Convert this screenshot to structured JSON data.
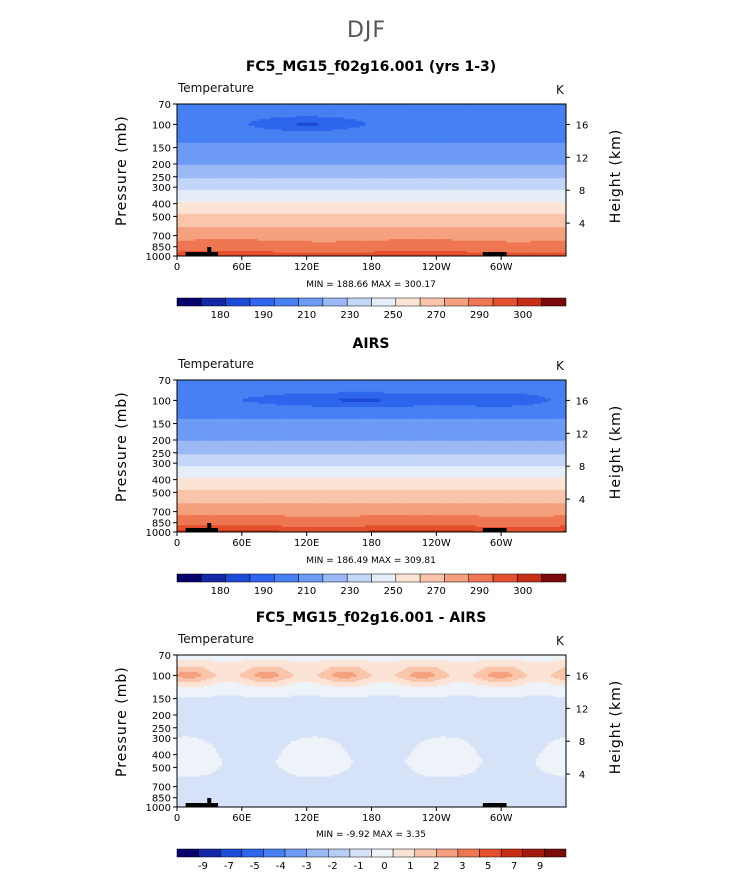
{
  "title": "DJF",
  "chart_data": [
    {
      "type": "heatmap",
      "title": "FC5_MG15_f02g16.001 (yrs 1-3)",
      "variable_label": "Temperature",
      "units": "K",
      "ylabel": "Pressure (mb)",
      "y2label": "Height (km)",
      "x_ticks": [
        "0",
        "60E",
        "120E",
        "180",
        "120W",
        "60W"
      ],
      "x_tick_lon": [
        0,
        60,
        120,
        180,
        240,
        300
      ],
      "xlim": [
        0,
        360
      ],
      "y_ticks": [
        70,
        100,
        150,
        200,
        250,
        300,
        400,
        500,
        700,
        850,
        1000
      ],
      "ylim": [
        70,
        1000
      ],
      "y2_ticks": [
        4,
        8,
        12,
        16
      ],
      "stats": "MIN = 188.66   MAX = 300.17",
      "colorbar": {
        "levels": [
          180,
          185,
          190,
          200,
          210,
          220,
          230,
          240,
          250,
          260,
          270,
          280,
          290,
          295,
          300
        ],
        "labels": [
          "180",
          "190",
          "210",
          "230",
          "250",
          "270",
          "290",
          "300"
        ],
        "colors": [
          "#08006b",
          "#1428a8",
          "#1e4bd6",
          "#2d66ed",
          "#4680f2",
          "#6d9bf5",
          "#9ab9f5",
          "#c3d6f7",
          "#e5eef8",
          "#fbe4d6",
          "#f9c5ab",
          "#f5a07e",
          "#ee7752",
          "#e4502d",
          "#c72e15",
          "#7a0b0b"
        ]
      },
      "profile": [
        {
          "p": 70,
          "t": 205
        },
        {
          "p": 100,
          "t": 203
        },
        {
          "p": 150,
          "t": 212
        },
        {
          "p": 200,
          "t": 220
        },
        {
          "p": 250,
          "t": 228
        },
        {
          "p": 300,
          "t": 237
        },
        {
          "p": 400,
          "t": 252
        },
        {
          "p": 500,
          "t": 262
        },
        {
          "p": 700,
          "t": 276
        },
        {
          "p": 850,
          "t": 285
        },
        {
          "p": 1000,
          "t": 294
        }
      ],
      "anomaly_cold": [
        {
          "lon": 120,
          "p": 100,
          "dlon": 45,
          "amp": -14
        }
      ]
    },
    {
      "type": "heatmap",
      "title": "AIRS",
      "variable_label": "Temperature",
      "units": "K",
      "ylabel": "Pressure (mb)",
      "y2label": "Height (km)",
      "x_ticks": [
        "0",
        "60E",
        "120E",
        "180",
        "120W",
        "60W"
      ],
      "x_tick_lon": [
        0,
        60,
        120,
        180,
        240,
        300
      ],
      "xlim": [
        0,
        360
      ],
      "y_ticks": [
        70,
        100,
        150,
        200,
        250,
        300,
        400,
        500,
        700,
        850,
        1000
      ],
      "ylim": [
        70,
        1000
      ],
      "y2_ticks": [
        4,
        8,
        12,
        16
      ],
      "stats": "MIN = 186.49   MAX = 309.81",
      "colorbar": {
        "levels": [
          180,
          185,
          190,
          200,
          210,
          220,
          230,
          240,
          250,
          260,
          270,
          280,
          290,
          295,
          300
        ],
        "labels": [
          "180",
          "190",
          "210",
          "230",
          "250",
          "270",
          "290",
          "300"
        ],
        "colors": [
          "#08006b",
          "#1428a8",
          "#1e4bd6",
          "#2d66ed",
          "#4680f2",
          "#6d9bf5",
          "#9ab9f5",
          "#c3d6f7",
          "#e5eef8",
          "#fbe4d6",
          "#f9c5ab",
          "#f5a07e",
          "#ee7752",
          "#e4502d",
          "#c72e15",
          "#7a0b0b"
        ]
      },
      "profile": [
        {
          "p": 70,
          "t": 205
        },
        {
          "p": 100,
          "t": 203
        },
        {
          "p": 150,
          "t": 212
        },
        {
          "p": 200,
          "t": 220
        },
        {
          "p": 250,
          "t": 228
        },
        {
          "p": 300,
          "t": 237
        },
        {
          "p": 400,
          "t": 252
        },
        {
          "p": 500,
          "t": 262
        },
        {
          "p": 700,
          "t": 276
        },
        {
          "p": 850,
          "t": 287
        },
        {
          "p": 1000,
          "t": 296
        }
      ],
      "anomaly_cold": [
        {
          "lon": 170,
          "p": 100,
          "dlon": 90,
          "amp": -14
        },
        {
          "lon": 300,
          "p": 100,
          "dlon": 40,
          "amp": -10
        }
      ]
    },
    {
      "type": "heatmap",
      "title": "FC5_MG15_f02g16.001 - AIRS",
      "variable_label": "Temperature",
      "units": "K",
      "ylabel": "Pressure (mb)",
      "y2label": "Height (km)",
      "x_ticks": [
        "0",
        "60E",
        "120E",
        "180",
        "120W",
        "60W"
      ],
      "x_tick_lon": [
        0,
        60,
        120,
        180,
        240,
        300
      ],
      "xlim": [
        0,
        360
      ],
      "y_ticks": [
        70,
        100,
        150,
        200,
        250,
        300,
        400,
        500,
        700,
        850,
        1000
      ],
      "ylim": [
        70,
        1000
      ],
      "y2_ticks": [
        4,
        8,
        12,
        16
      ],
      "stats": "MIN =   -9.92   MAX =     3.35",
      "colorbar": {
        "levels": [
          -9,
          -8,
          -7,
          -6,
          -5,
          -4,
          -3,
          -2,
          -1,
          0,
          1,
          2,
          3,
          4,
          5,
          6,
          7,
          8,
          9
        ],
        "labels": [
          "-9",
          "-7",
          "-5",
          "-4",
          "-3",
          "-2",
          "-1",
          "0",
          "1",
          "2",
          "3",
          "5",
          "7",
          "9"
        ],
        "colors": [
          "#08006b",
          "#1428a8",
          "#1e4bd6",
          "#2d66ed",
          "#4680f2",
          "#6d9bf5",
          "#9ab9f5",
          "#b8cdf6",
          "#d6e2f7",
          "#eef3f9",
          "#fbe4d6",
          "#f9c5ab",
          "#f5a07e",
          "#ee7752",
          "#e4502d",
          "#c72e15",
          "#a01a0f",
          "#7a0b0b"
        ]
      },
      "diff_profile": [
        {
          "p": 70,
          "v": -0.6
        },
        {
          "p": 100,
          "v": 1.6
        },
        {
          "p": 130,
          "v": -0.8
        },
        {
          "p": 200,
          "v": -1.6
        },
        {
          "p": 300,
          "v": -1.3
        },
        {
          "p": 450,
          "v": -0.8
        },
        {
          "p": 600,
          "v": -1.2
        },
        {
          "p": 800,
          "v": -1.5
        },
        {
          "p": 1000,
          "v": -1.0
        }
      ]
    }
  ]
}
